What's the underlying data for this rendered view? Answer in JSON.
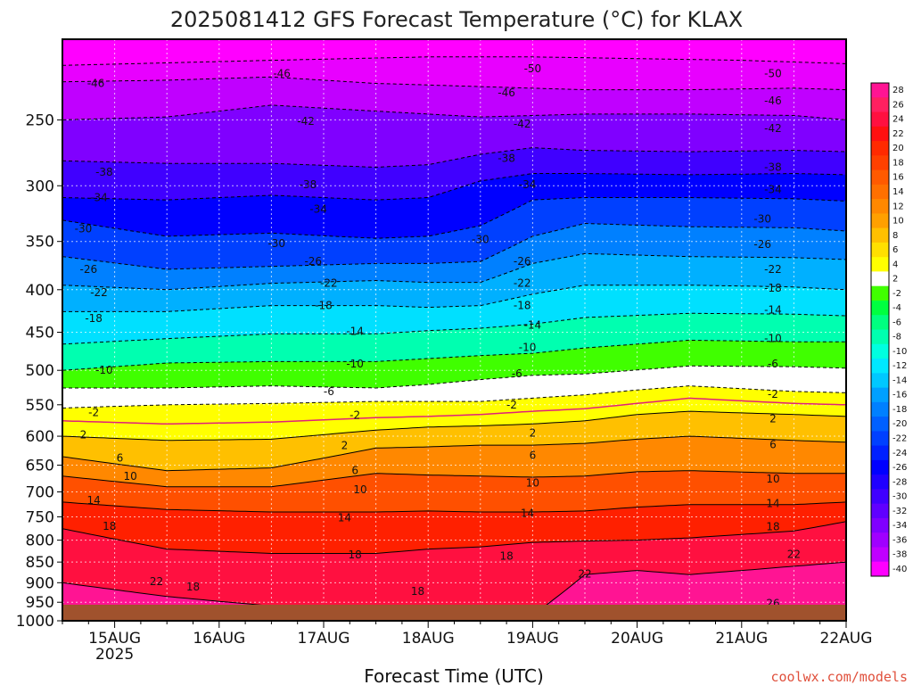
{
  "chart_data": {
    "type": "heatmap",
    "title": "2025081412 GFS Forecast Temperature (°C) for KLAX",
    "xlabel": "Forecast Time (UTC)",
    "ylabel": "",
    "credit": "coolwx.com/models",
    "y_scale": "log",
    "ylim": [
      1000,
      200
    ],
    "y_ticks": [
      250,
      300,
      350,
      400,
      450,
      500,
      550,
      600,
      650,
      700,
      750,
      800,
      850,
      900,
      950,
      1000
    ],
    "x_ticks": [
      "15AUG",
      "16AUG",
      "17AUG",
      "18AUG",
      "19AUG",
      "20AUG",
      "21AUG",
      "22AUG"
    ],
    "x_year_label": "2025",
    "x_range_days": [
      14.5,
      22.0
    ],
    "colorbar": {
      "levels": [
        28,
        26,
        24,
        22,
        20,
        18,
        16,
        14,
        12,
        10,
        8,
        6,
        4,
        2,
        -2,
        -4,
        -6,
        -8,
        -10,
        -12,
        -14,
        -16,
        -18,
        -20,
        -22,
        -24,
        -26,
        -28,
        -30,
        -32,
        -34,
        -36,
        -38,
        -40
      ],
      "colors": [
        "#ff1493",
        "#ff2060",
        "#ff1040",
        "#ff1010",
        "#ff2a00",
        "#ff4000",
        "#ff5a00",
        "#ff7000",
        "#ff8800",
        "#ffa000",
        "#ffc000",
        "#ffe000",
        "#ffff00",
        "#ffffff",
        "#40ff00",
        "#00ff40",
        "#00ff80",
        "#00ffb0",
        "#00ffe0",
        "#00e8ff",
        "#00c8ff",
        "#00a0ff",
        "#0080ff",
        "#0060ff",
        "#0040ff",
        "#0020ff",
        "#0000ff",
        "#2000ff",
        "#4000ff",
        "#6000ff",
        "#8000ff",
        "#a000ff",
        "#c000ff",
        "#ff00ff"
      ]
    },
    "isotherms_hpa": [
      {
        "label": "-50",
        "x": [
          14.5,
          16.5,
          18.0,
          19.0,
          20.0,
          21.0,
          22.0
        ],
        "p": [
          215,
          212,
          210,
          210,
          211,
          212,
          214
        ]
      },
      {
        "label": "-46",
        "x": [
          14.5,
          15.5,
          16.5,
          17.5,
          18.5,
          19.5,
          20.5,
          21.5,
          22.0
        ],
        "p": [
          225,
          224,
          222,
          226,
          228,
          230,
          230,
          229,
          230
        ]
      },
      {
        "label": "-42",
        "x": [
          14.5,
          15.5,
          16.5,
          17.5,
          18.5,
          19.5,
          20.5,
          21.5,
          22.0
        ],
        "p": [
          250,
          248,
          240,
          244,
          248,
          246,
          246,
          247,
          250
        ]
      },
      {
        "label": "-38",
        "x": [
          14.5,
          15.5,
          16.5,
          17.5,
          18.0,
          18.5,
          19.0,
          19.5,
          20.5,
          21.5,
          22.0
        ],
        "p": [
          280,
          282,
          282,
          285,
          283,
          275,
          270,
          272,
          273,
          272,
          273
        ]
      },
      {
        "label": "-34",
        "x": [
          14.5,
          15.5,
          16.5,
          17.5,
          18.0,
          18.5,
          19.0,
          19.5,
          20.5,
          21.5,
          22.0
        ],
        "p": [
          310,
          312,
          308,
          312,
          310,
          296,
          290,
          290,
          291,
          290,
          291
        ]
      },
      {
        "label": "-30",
        "x": [
          14.5,
          15.5,
          16.5,
          17.5,
          18.0,
          18.5,
          19.0,
          19.5,
          20.5,
          21.5,
          22.0
        ],
        "p": [
          330,
          345,
          342,
          347,
          345,
          335,
          312,
          310,
          310,
          311,
          313
        ]
      },
      {
        "label": "-26",
        "x": [
          14.5,
          15.5,
          16.5,
          17.5,
          18.0,
          18.5,
          19.0,
          19.5,
          20.5,
          21.5,
          22.0
        ],
        "p": [
          365,
          378,
          375,
          372,
          372,
          370,
          345,
          333,
          336,
          337,
          340
        ]
      },
      {
        "label": "-22",
        "x": [
          14.5,
          15.5,
          16.5,
          17.5,
          18.0,
          18.5,
          19.0,
          19.5,
          20.5,
          21.5,
          22.0
        ],
        "p": [
          395,
          400,
          393,
          390,
          392,
          392,
          372,
          362,
          365,
          366,
          368
        ]
      },
      {
        "label": "-18",
        "x": [
          14.5,
          15.5,
          16.5,
          17.5,
          18.0,
          18.5,
          19.0,
          19.5,
          20.5,
          21.5,
          22.0
        ],
        "p": [
          425,
          425,
          418,
          418,
          420,
          418,
          405,
          395,
          395,
          397,
          400
        ]
      },
      {
        "label": "-14",
        "x": [
          14.5,
          15.5,
          16.5,
          17.5,
          18.0,
          18.5,
          19.0,
          19.5,
          20.5,
          21.5,
          22.0
        ],
        "p": [
          465,
          458,
          452,
          452,
          448,
          445,
          440,
          432,
          427,
          428,
          430
        ]
      },
      {
        "label": "-10",
        "x": [
          14.5,
          15.5,
          16.5,
          17.5,
          18.0,
          18.5,
          19.0,
          19.5,
          20.5,
          21.5,
          22.0
        ],
        "p": [
          500,
          490,
          488,
          488,
          484,
          480,
          477,
          470,
          460,
          462,
          462
        ]
      },
      {
        "label": "-6",
        "x": [
          14.5,
          15.5,
          16.5,
          17.5,
          18.0,
          18.5,
          19.0,
          19.5,
          20.5,
          21.5,
          22.0
        ],
        "p": [
          525,
          525,
          522,
          525,
          520,
          513,
          507,
          505,
          494,
          495,
          497
        ]
      },
      {
        "label": "-2",
        "x": [
          14.5,
          15.5,
          16.5,
          17.5,
          18.0,
          18.5,
          19.0,
          19.5,
          20.0,
          20.5,
          21.5,
          22.0
        ],
        "p": [
          555,
          550,
          548,
          545,
          545,
          545,
          540,
          535,
          528,
          522,
          530,
          532
        ]
      },
      {
        "label": "2",
        "x": [
          14.5,
          15.5,
          16.5,
          17.5,
          18.0,
          18.5,
          19.0,
          19.5,
          20.0,
          20.5,
          21.5,
          22.0
        ],
        "p": [
          600,
          607,
          605,
          590,
          585,
          583,
          580,
          575,
          565,
          560,
          565,
          568
        ]
      },
      {
        "label": "6",
        "x": [
          14.5,
          15.5,
          16.5,
          17.5,
          18.0,
          18.5,
          19.0,
          19.5,
          20.0,
          20.5,
          21.5,
          22.0
        ],
        "p": [
          635,
          660,
          655,
          620,
          618,
          615,
          615,
          612,
          605,
          600,
          607,
          610
        ]
      },
      {
        "label": "10",
        "x": [
          14.5,
          15.5,
          16.5,
          17.5,
          18.0,
          18.5,
          19.0,
          19.5,
          20.0,
          20.5,
          21.5,
          22.0
        ],
        "p": [
          670,
          690,
          690,
          665,
          668,
          670,
          672,
          670,
          662,
          660,
          665,
          665
        ]
      },
      {
        "label": "14",
        "x": [
          14.5,
          15.5,
          16.5,
          17.5,
          18.0,
          18.5,
          19.0,
          19.5,
          20.0,
          20.5,
          21.5,
          22.0
        ],
        "p": [
          720,
          735,
          740,
          740,
          738,
          740,
          740,
          738,
          730,
          725,
          725,
          720
        ]
      },
      {
        "label": "18",
        "x": [
          14.5,
          15.5,
          16.5,
          17.5,
          18.0,
          18.5,
          19.0,
          19.5,
          20.0,
          20.5,
          21.5,
          22.0
        ],
        "p": [
          775,
          820,
          830,
          830,
          820,
          815,
          805,
          802,
          800,
          795,
          780,
          760
        ]
      },
      {
        "label": "22",
        "x": [
          14.5,
          15.5,
          16.5,
          17.5,
          18.0,
          18.5,
          19.0,
          19.5,
          20.0,
          20.5,
          21.5,
          22.0
        ],
        "p": [
          900,
          935,
          960,
          985,
          990,
          990,
          985,
          880,
          870,
          880,
          860,
          850
        ]
      }
    ],
    "freezing_line_hpa": {
      "label": "0",
      "x": [
        14.5,
        15.5,
        16.5,
        17.5,
        18.0,
        18.5,
        19.0,
        19.5,
        20.0,
        20.5,
        21.5,
        22.0
      ],
      "p": [
        575,
        580,
        577,
        570,
        568,
        565,
        560,
        556,
        548,
        540,
        548,
        550
      ]
    },
    "contour_labels": [
      {
        "text": "-46",
        "day": 14.82,
        "hpa": 226
      },
      {
        "text": "-46",
        "day": 16.6,
        "hpa": 220
      },
      {
        "text": "-50",
        "day": 19.0,
        "hpa": 217
      },
      {
        "text": "-50",
        "day": 21.3,
        "hpa": 220
      },
      {
        "text": "-46",
        "day": 18.75,
        "hpa": 232
      },
      {
        "text": "-46",
        "day": 21.3,
        "hpa": 237
      },
      {
        "text": "-42",
        "day": 16.83,
        "hpa": 251
      },
      {
        "text": "-42",
        "day": 18.9,
        "hpa": 253
      },
      {
        "text": "-42",
        "day": 21.3,
        "hpa": 256
      },
      {
        "text": "-38",
        "day": 14.9,
        "hpa": 289
      },
      {
        "text": "-38",
        "day": 16.85,
        "hpa": 299
      },
      {
        "text": "-38",
        "day": 18.75,
        "hpa": 278
      },
      {
        "text": "-38",
        "day": 21.3,
        "hpa": 285
      },
      {
        "text": "-34",
        "day": 14.85,
        "hpa": 310
      },
      {
        "text": "-34",
        "day": 16.95,
        "hpa": 320
      },
      {
        "text": "-34",
        "day": 18.95,
        "hpa": 299
      },
      {
        "text": "-34",
        "day": 21.3,
        "hpa": 303
      },
      {
        "text": "-30",
        "day": 14.7,
        "hpa": 338
      },
      {
        "text": "-30",
        "day": 16.55,
        "hpa": 352
      },
      {
        "text": "-30",
        "day": 18.5,
        "hpa": 348
      },
      {
        "text": "-30",
        "day": 21.2,
        "hpa": 329
      },
      {
        "text": "-26",
        "day": 14.75,
        "hpa": 378
      },
      {
        "text": "-26",
        "day": 16.9,
        "hpa": 370
      },
      {
        "text": "-26",
        "day": 18.9,
        "hpa": 370
      },
      {
        "text": "-26",
        "day": 21.2,
        "hpa": 353
      },
      {
        "text": "-22",
        "day": 14.85,
        "hpa": 403
      },
      {
        "text": "-22",
        "day": 17.05,
        "hpa": 393
      },
      {
        "text": "-22",
        "day": 18.9,
        "hpa": 393
      },
      {
        "text": "-22",
        "day": 21.3,
        "hpa": 378
      },
      {
        "text": "-18",
        "day": 14.8,
        "hpa": 433
      },
      {
        "text": "-18",
        "day": 17.0,
        "hpa": 418
      },
      {
        "text": "-18",
        "day": 18.9,
        "hpa": 418
      },
      {
        "text": "-18",
        "day": 21.3,
        "hpa": 398
      },
      {
        "text": "-14",
        "day": 17.3,
        "hpa": 449
      },
      {
        "text": "-14",
        "day": 19.0,
        "hpa": 441
      },
      {
        "text": "-14",
        "day": 21.3,
        "hpa": 423
      },
      {
        "text": "-10",
        "day": 14.9,
        "hpa": 500
      },
      {
        "text": "-10",
        "day": 17.3,
        "hpa": 491
      },
      {
        "text": "-10",
        "day": 18.95,
        "hpa": 469
      },
      {
        "text": "-10",
        "day": 21.3,
        "hpa": 458
      },
      {
        "text": "-6",
        "day": 17.05,
        "hpa": 530
      },
      {
        "text": "-6",
        "day": 18.85,
        "hpa": 505
      },
      {
        "text": "-6",
        "day": 21.3,
        "hpa": 491
      },
      {
        "text": "-2",
        "day": 14.8,
        "hpa": 562
      },
      {
        "text": "-2",
        "day": 17.3,
        "hpa": 566
      },
      {
        "text": "-2",
        "day": 18.8,
        "hpa": 550
      },
      {
        "text": "-2",
        "day": 21.3,
        "hpa": 534
      },
      {
        "text": "2",
        "day": 14.7,
        "hpa": 598
      },
      {
        "text": "2",
        "day": 17.2,
        "hpa": 616
      },
      {
        "text": "2",
        "day": 19.0,
        "hpa": 595
      },
      {
        "text": "2",
        "day": 21.3,
        "hpa": 572
      },
      {
        "text": "6",
        "day": 15.05,
        "hpa": 637
      },
      {
        "text": "6",
        "day": 17.3,
        "hpa": 660
      },
      {
        "text": "6",
        "day": 19.0,
        "hpa": 633
      },
      {
        "text": "6",
        "day": 21.3,
        "hpa": 614
      },
      {
        "text": "10",
        "day": 15.15,
        "hpa": 670
      },
      {
        "text": "10",
        "day": 17.35,
        "hpa": 696
      },
      {
        "text": "10",
        "day": 19.0,
        "hpa": 683
      },
      {
        "text": "10",
        "day": 21.3,
        "hpa": 675
      },
      {
        "text": "14",
        "day": 14.8,
        "hpa": 717
      },
      {
        "text": "14",
        "day": 17.2,
        "hpa": 752
      },
      {
        "text": "14",
        "day": 18.95,
        "hpa": 743
      },
      {
        "text": "14",
        "day": 21.3,
        "hpa": 723
      },
      {
        "text": "18",
        "day": 14.95,
        "hpa": 770
      },
      {
        "text": "18",
        "day": 17.3,
        "hpa": 833
      },
      {
        "text": "18",
        "day": 18.75,
        "hpa": 836
      },
      {
        "text": "18",
        "day": 21.3,
        "hpa": 771
      },
      {
        "text": "22",
        "day": 15.4,
        "hpa": 897
      },
      {
        "text": "18",
        "day": 15.75,
        "hpa": 910
      },
      {
        "text": "18",
        "day": 17.9,
        "hpa": 922
      },
      {
        "text": "22",
        "day": 19.5,
        "hpa": 878
      },
      {
        "text": "22",
        "day": 21.5,
        "hpa": 832
      },
      {
        "text": "18",
        "day": 17.05,
        "hpa": 990
      },
      {
        "text": "26",
        "day": 21.3,
        "hpa": 953
      },
      {
        "text": "22",
        "day": 21.5,
        "hpa": 987
      }
    ]
  }
}
